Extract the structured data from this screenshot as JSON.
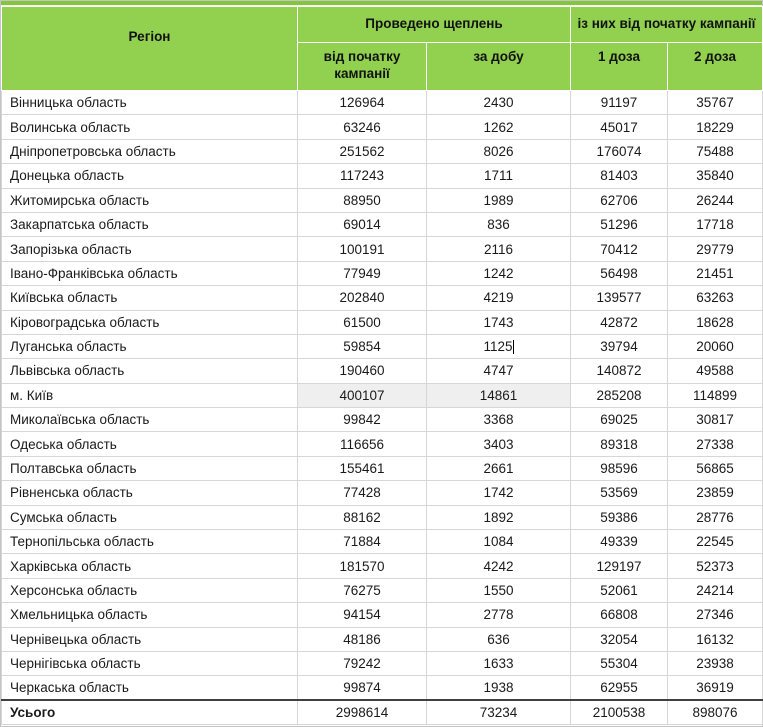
{
  "table": {
    "header": {
      "region": "Регіон",
      "group_vaccinations": "Проведено щеплень",
      "group_since_start": "із них від початку кампанії",
      "col_since_start": "від початку кампанії",
      "col_per_day": "за добу",
      "col_dose1": "1 доза",
      "col_dose2": "2 доза"
    },
    "rows": [
      {
        "region": "Вінницька область",
        "since_start": "126964",
        "per_day": "2430",
        "dose1": "91197",
        "dose2": "35767"
      },
      {
        "region": "Волинська область",
        "since_start": "63246",
        "per_day": "1262",
        "dose1": "45017",
        "dose2": "18229"
      },
      {
        "region": "Дніпропетровська область",
        "since_start": "251562",
        "per_day": "8026",
        "dose1": "176074",
        "dose2": "75488"
      },
      {
        "region": "Донецька область",
        "since_start": "117243",
        "per_day": "1711",
        "dose1": "81403",
        "dose2": "35840"
      },
      {
        "region": "Житомирська область",
        "since_start": "88950",
        "per_day": "1989",
        "dose1": "62706",
        "dose2": "26244"
      },
      {
        "region": "Закарпатська область",
        "since_start": "69014",
        "per_day": "836",
        "dose1": "51296",
        "dose2": "17718"
      },
      {
        "region": "Запорізька область",
        "since_start": "100191",
        "per_day": "2116",
        "dose1": "70412",
        "dose2": "29779"
      },
      {
        "region": "Івано-Франківська область",
        "since_start": "77949",
        "per_day": "1242",
        "dose1": "56498",
        "dose2": "21451"
      },
      {
        "region": "Київська область",
        "since_start": "202840",
        "per_day": "4219",
        "dose1": "139577",
        "dose2": "63263"
      },
      {
        "region": "Кіровоградська область",
        "since_start": "61500",
        "per_day": "1743",
        "dose1": "42872",
        "dose2": "18628"
      },
      {
        "region": "Луганська область",
        "since_start": "59854",
        "per_day": "1125",
        "dose1": "39794",
        "dose2": "20060",
        "cursor_in": "per_day"
      },
      {
        "region": "Львівська область",
        "since_start": "190460",
        "per_day": "4747",
        "dose1": "140872",
        "dose2": "49588"
      },
      {
        "region": "м. Київ",
        "since_start": "400107",
        "per_day": "14861",
        "dose1": "285208",
        "dose2": "114899",
        "highlight_cells": [
          "since_start",
          "per_day"
        ]
      },
      {
        "region": "Миколаївська область",
        "since_start": "99842",
        "per_day": "3368",
        "dose1": "69025",
        "dose2": "30817"
      },
      {
        "region": "Одеська область",
        "since_start": "116656",
        "per_day": "3403",
        "dose1": "89318",
        "dose2": "27338"
      },
      {
        "region": "Полтавська область",
        "since_start": "155461",
        "per_day": "2661",
        "dose1": "98596",
        "dose2": "56865"
      },
      {
        "region": "Рівненська область",
        "since_start": "77428",
        "per_day": "1742",
        "dose1": "53569",
        "dose2": "23859"
      },
      {
        "region": "Сумська область",
        "since_start": "88162",
        "per_day": "1892",
        "dose1": "59386",
        "dose2": "28776"
      },
      {
        "region": "Тернопільська область",
        "since_start": "71884",
        "per_day": "1084",
        "dose1": "49339",
        "dose2": "22545"
      },
      {
        "region": "Харківська область",
        "since_start": "181570",
        "per_day": "4242",
        "dose1": "129197",
        "dose2": "52373"
      },
      {
        "region": "Херсонська область",
        "since_start": "76275",
        "per_day": "1550",
        "dose1": "52061",
        "dose2": "24214"
      },
      {
        "region": "Хмельницька область",
        "since_start": "94154",
        "per_day": "2778",
        "dose1": "66808",
        "dose2": "27346"
      },
      {
        "region": "Чернівецька область",
        "since_start": "48186",
        "per_day": "636",
        "dose1": "32054",
        "dose2": "16132"
      },
      {
        "region": "Чернігівська область",
        "since_start": "79242",
        "per_day": "1633",
        "dose1": "55304",
        "dose2": "23938"
      },
      {
        "region": "Черкаська область",
        "since_start": "99874",
        "per_day": "1938",
        "dose1": "62955",
        "dose2": "36919"
      }
    ],
    "total": {
      "region": "Усього",
      "since_start": "2998614",
      "per_day": "73234",
      "dose1": "2100538",
      "dose2": "898076"
    },
    "colors": {
      "header_green": "#92D050",
      "header_top_strip": "#85C43F",
      "grid_line": "#D6D6D6",
      "highlight_gray": "#EFEFEF",
      "total_border": "#404040"
    }
  }
}
